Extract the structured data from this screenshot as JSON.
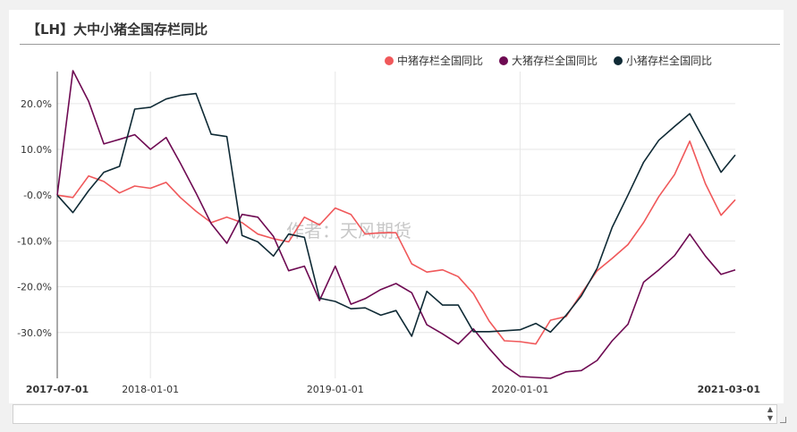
{
  "title": "【LH】大中小猪全国存栏同比",
  "watermark": "作者：天风期货",
  "colors": {
    "mid": "#f0585a",
    "large": "#6e0a52",
    "small": "#0f2a35",
    "grid": "#e6e6e6",
    "axis": "#333333"
  },
  "chart_data": {
    "type": "line",
    "title": "【LH】大中小猪全国存栏同比",
    "xlabel": "",
    "ylabel": "",
    "x_range": [
      "2017-07-01",
      "2021-03-01"
    ],
    "x_ticks": [
      {
        "date": "2017-07-01",
        "label": "2017-07-01",
        "bold": true
      },
      {
        "date": "2018-01-01",
        "label": "2018-01-01",
        "bold": false
      },
      {
        "date": "2019-01-01",
        "label": "2019-01-01",
        "bold": false
      },
      {
        "date": "2020-01-01",
        "label": "2020-01-01",
        "bold": false
      },
      {
        "date": "2021-03-01",
        "label": "2021-03-01",
        "bold": true
      }
    ],
    "y_ticks": [
      {
        "value": 20,
        "label": "20.0%"
      },
      {
        "value": 10,
        "label": "10.0%"
      },
      {
        "value": 0,
        "label": "-0.0%"
      },
      {
        "value": -10,
        "label": "-10.0%"
      },
      {
        "value": -20,
        "label": "-20.0%"
      },
      {
        "value": -30,
        "label": "-30.0%"
      }
    ],
    "ylim": [
      -40,
      27
    ],
    "grid": true,
    "legend_position": "top-right",
    "x": [
      "2017-07",
      "2017-08",
      "2017-09",
      "2017-10",
      "2017-11",
      "2017-12",
      "2018-01",
      "2018-02",
      "2018-03",
      "2018-04",
      "2018-05",
      "2018-06",
      "2018-07",
      "2018-08",
      "2018-09",
      "2018-10",
      "2018-11",
      "2018-12",
      "2019-01",
      "2019-02",
      "2019-03",
      "2019-04",
      "2019-05",
      "2019-06",
      "2019-07",
      "2019-08",
      "2019-09",
      "2019-10",
      "2019-11",
      "2019-12",
      "2020-01",
      "2020-02",
      "2020-03",
      "2020-04",
      "2020-05",
      "2020-06",
      "2020-07",
      "2020-08",
      "2020-09",
      "2020-10",
      "2020-11",
      "2020-12",
      "2021-01",
      "2021-02",
      "2021-03"
    ],
    "series": [
      {
        "name": "中猪存栏全国同比",
        "key": "mid",
        "values": [
          0.0,
          -0.5,
          4.2,
          3.0,
          0.5,
          2.0,
          1.5,
          2.8,
          -0.5,
          -3.5,
          -6.0,
          -4.8,
          -6.0,
          -8.5,
          -9.5,
          -10.2,
          -4.8,
          -6.5,
          -2.8,
          -4.2,
          -8.5,
          -8.2,
          -8.2,
          -15.0,
          -16.8,
          -16.3,
          -17.8,
          -21.5,
          -27.5,
          -31.8,
          -32.0,
          -32.5,
          -27.3,
          -26.5,
          -21.5,
          -16.5,
          -13.8,
          -10.8,
          -6.0,
          -0.3,
          4.5,
          11.8,
          2.5,
          -4.4,
          -1.0
        ]
      },
      {
        "name": "大猪存栏全国同比",
        "key": "large",
        "values": [
          0.0,
          27.2,
          20.5,
          11.2,
          12.2,
          13.2,
          10.0,
          12.6,
          7.0,
          0.5,
          -6.2,
          -10.5,
          -4.2,
          -4.8,
          -9.0,
          -16.5,
          -15.5,
          -23.0,
          -15.5,
          -23.8,
          -22.6,
          -20.6,
          -19.3,
          -21.3,
          -28.3,
          -30.3,
          -32.5,
          -29.2,
          -33.5,
          -37.2,
          -39.6,
          -39.8,
          -40.0,
          -38.6,
          -38.3,
          -36.1,
          -31.8,
          -28.2,
          -19.0,
          -16.3,
          -13.2,
          -8.5,
          -13.3,
          -17.3,
          -16.3
        ]
      },
      {
        "name": "小猪存栏全国同比",
        "key": "small",
        "values": [
          0.0,
          -3.8,
          1.0,
          5.0,
          6.3,
          18.8,
          19.2,
          21.0,
          21.8,
          22.2,
          13.3,
          12.8,
          -8.8,
          -10.2,
          -13.3,
          -8.5,
          -9.2,
          -22.5,
          -23.2,
          -24.8,
          -24.6,
          -26.2,
          -25.2,
          -30.8,
          -21.0,
          -24.0,
          -24.0,
          -29.8,
          -29.8,
          -29.6,
          -29.4,
          -28.0,
          -29.9,
          -26.2,
          -22.0,
          -16.0,
          -7.0,
          0.0,
          7.2,
          12.0,
          15.0,
          17.8,
          11.5,
          5.0,
          8.8
        ]
      }
    ]
  }
}
